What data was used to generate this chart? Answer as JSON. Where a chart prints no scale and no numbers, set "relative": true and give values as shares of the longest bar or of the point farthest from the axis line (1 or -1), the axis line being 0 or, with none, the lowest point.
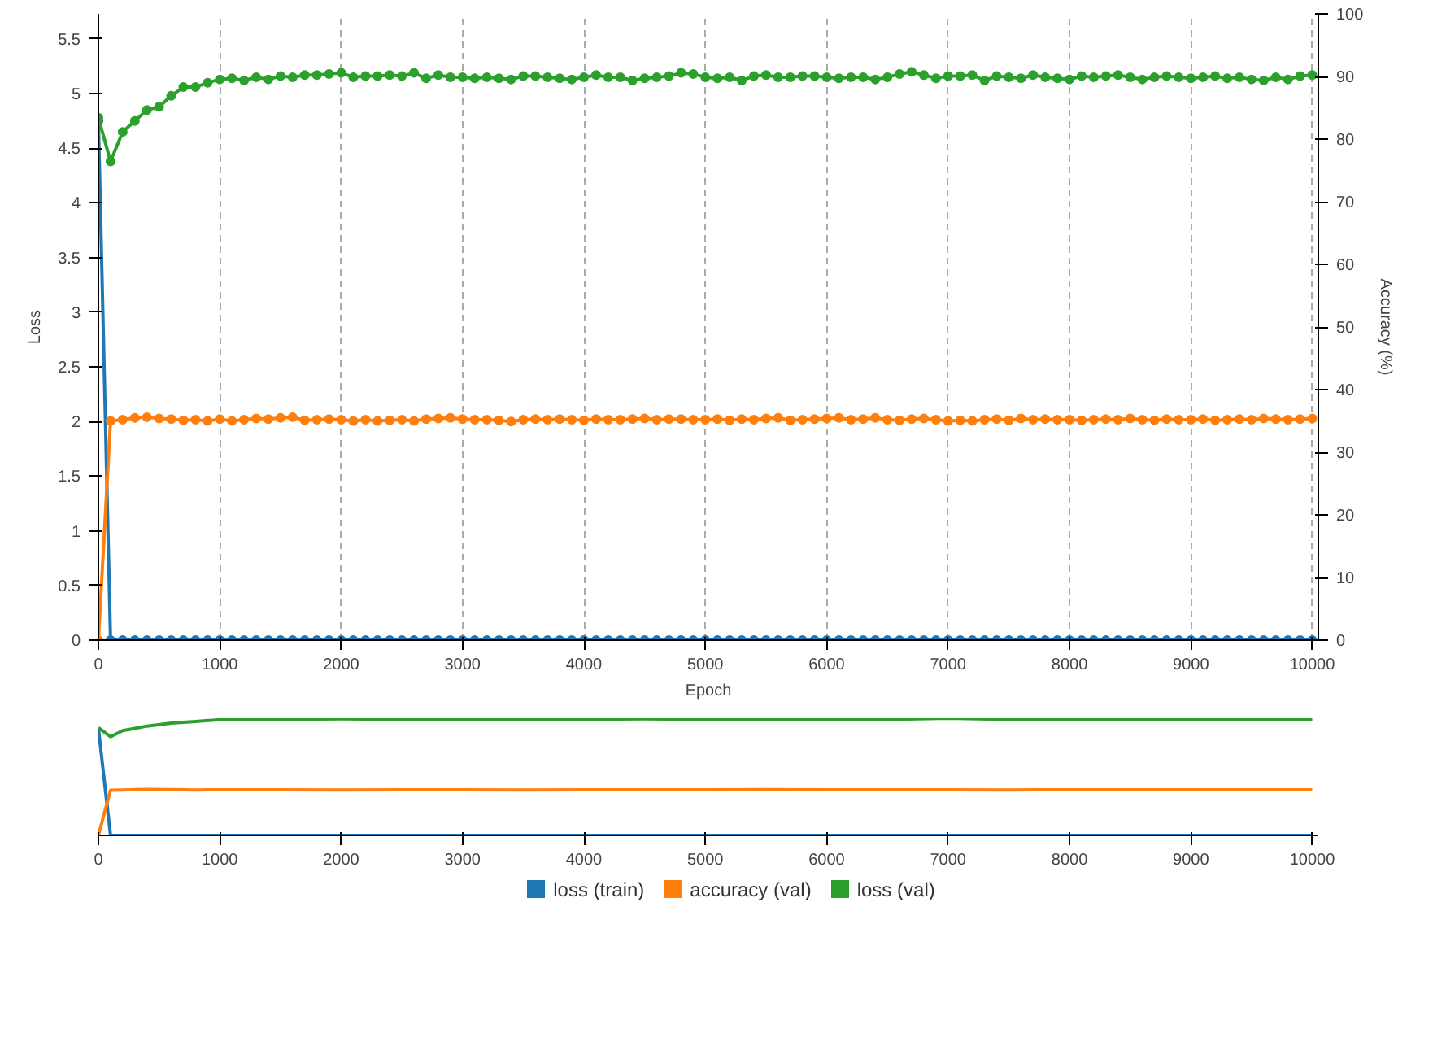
{
  "chart_data": [
    {
      "type": "line",
      "xlabel": "Epoch",
      "ylabel": "Loss",
      "y2label": "Accuracy (%)",
      "x": [
        0,
        100,
        200,
        300,
        400,
        500,
        600,
        700,
        800,
        900,
        1000,
        1100,
        1200,
        1300,
        1400,
        1500,
        1600,
        1700,
        1800,
        1900,
        2000,
        2100,
        2200,
        2300,
        2400,
        2500,
        2600,
        2700,
        2800,
        2900,
        3000,
        3100,
        3200,
        3300,
        3400,
        3500,
        3600,
        3700,
        3800,
        3900,
        4000,
        4100,
        4200,
        4300,
        4400,
        4500,
        4600,
        4700,
        4800,
        4900,
        5000,
        5100,
        5200,
        5300,
        5400,
        5500,
        5600,
        5700,
        5800,
        5900,
        6000,
        6100,
        6200,
        6300,
        6400,
        6500,
        6600,
        6700,
        6800,
        6900,
        7000,
        7100,
        7200,
        7300,
        7400,
        7500,
        7600,
        7700,
        7800,
        7900,
        8000,
        8100,
        8200,
        8300,
        8400,
        8500,
        8600,
        8700,
        8800,
        8900,
        9000,
        9100,
        9200,
        9300,
        9400,
        9500,
        9600,
        9700,
        9800,
        9900,
        10000
      ],
      "series": [
        {
          "color": "#1f77b4",
          "values": [
            4.75,
            0,
            0,
            0,
            0,
            0,
            0,
            0,
            0,
            0,
            0,
            0,
            0,
            0,
            0,
            0,
            0,
            0,
            0,
            0,
            0,
            0,
            0,
            0,
            0,
            0,
            0,
            0,
            0,
            0,
            0,
            0,
            0,
            0,
            0,
            0,
            0,
            0,
            0,
            0,
            0,
            0,
            0,
            0,
            0,
            0,
            0,
            0,
            0,
            0,
            0,
            0,
            0,
            0,
            0,
            0,
            0,
            0,
            0,
            0,
            0,
            0,
            0,
            0,
            0,
            0,
            0,
            0,
            0,
            0,
            0,
            0,
            0,
            0,
            0,
            0,
            0,
            0,
            0,
            0,
            0,
            0,
            0,
            0,
            0,
            0,
            0,
            0,
            0,
            0,
            0,
            0,
            0,
            0,
            0,
            0,
            0,
            0,
            0,
            0,
            0
          ]
        },
        {
          "color": "#ff7f0e",
          "axis": "y2",
          "values": [
            0,
            35.0,
            35.2,
            35.5,
            35.6,
            35.4,
            35.3,
            35.1,
            35.2,
            35.0,
            35.3,
            35.0,
            35.2,
            35.4,
            35.3,
            35.5,
            35.6,
            35.1,
            35.2,
            35.3,
            35.2,
            35.0,
            35.2,
            35.0,
            35.1,
            35.2,
            35.0,
            35.3,
            35.4,
            35.5,
            35.3,
            35.2,
            35.2,
            35.1,
            34.9,
            35.2,
            35.3,
            35.2,
            35.3,
            35.2,
            35.1,
            35.3,
            35.2,
            35.2,
            35.3,
            35.4,
            35.2,
            35.3,
            35.3,
            35.2,
            35.2,
            35.3,
            35.1,
            35.3,
            35.2,
            35.4,
            35.5,
            35.1,
            35.2,
            35.3,
            35.4,
            35.5,
            35.2,
            35.3,
            35.5,
            35.2,
            35.1,
            35.3,
            35.4,
            35.2,
            35.0,
            35.1,
            35.0,
            35.2,
            35.3,
            35.1,
            35.4,
            35.2,
            35.3,
            35.2,
            35.2,
            35.1,
            35.2,
            35.3,
            35.2,
            35.4,
            35.2,
            35.1,
            35.3,
            35.2,
            35.2,
            35.3,
            35.1,
            35.2,
            35.3,
            35.2,
            35.4,
            35.3,
            35.2,
            35.3,
            35.4
          ]
        },
        {
          "color": "#2ca02c",
          "values": [
            4.78,
            4.38,
            4.65,
            4.75,
            4.85,
            4.88,
            4.98,
            5.06,
            5.06,
            5.1,
            5.13,
            5.14,
            5.12,
            5.15,
            5.13,
            5.16,
            5.15,
            5.17,
            5.17,
            5.18,
            5.19,
            5.15,
            5.16,
            5.16,
            5.17,
            5.16,
            5.19,
            5.14,
            5.17,
            5.15,
            5.15,
            5.14,
            5.15,
            5.14,
            5.13,
            5.16,
            5.16,
            5.15,
            5.14,
            5.13,
            5.15,
            5.17,
            5.15,
            5.15,
            5.12,
            5.14,
            5.15,
            5.16,
            5.19,
            5.18,
            5.15,
            5.14,
            5.15,
            5.12,
            5.16,
            5.17,
            5.15,
            5.15,
            5.16,
            5.16,
            5.15,
            5.14,
            5.15,
            5.15,
            5.13,
            5.15,
            5.18,
            5.2,
            5.17,
            5.14,
            5.16,
            5.16,
            5.17,
            5.12,
            5.16,
            5.15,
            5.14,
            5.17,
            5.15,
            5.14,
            5.13,
            5.16,
            5.15,
            5.16,
            5.17,
            5.15,
            5.13,
            5.15,
            5.16,
            5.15,
            5.14,
            5.15,
            5.16,
            5.14,
            5.15,
            5.13,
            5.12,
            5.15,
            5.13,
            5.16,
            5.17
          ]
        }
      ],
      "xlim": [
        0,
        10050
      ],
      "xticks": [
        0,
        1000,
        2000,
        3000,
        4000,
        5000,
        6000,
        7000,
        8000,
        9000,
        10000
      ],
      "ylim": [
        0,
        5.73
      ],
      "yticks": [
        0,
        0.5,
        1,
        1.5,
        2,
        2.5,
        3,
        3.5,
        4,
        4.5,
        5,
        5.5
      ],
      "y2lim": [
        0,
        100
      ],
      "y2ticks": [
        0,
        10,
        20,
        30,
        40,
        50,
        60,
        70,
        80,
        90,
        100
      ],
      "grid": "x",
      "marker": "circle",
      "line_style": "solid"
    },
    {
      "type": "line",
      "relative": true,
      "x": [
        0,
        100,
        200,
        300,
        400,
        600,
        800,
        1000,
        1500,
        2000,
        2500,
        3000,
        3500,
        4000,
        4500,
        5000,
        5500,
        6000,
        6500,
        7000,
        7500,
        8000,
        8500,
        9000,
        9500,
        10000
      ],
      "series": [
        {
          "name": "loss (train)",
          "color": "#1f77b4",
          "values": [
            0.913,
            0,
            0,
            0,
            0,
            0,
            0,
            0,
            0,
            0,
            0,
            0,
            0,
            0,
            0,
            0,
            0,
            0,
            0,
            0,
            0,
            0,
            0,
            0,
            0,
            0
          ]
        },
        {
          "name": "accuracy (val)",
          "color": "#ff7f0e",
          "values": [
            0,
            0.386,
            0.388,
            0.391,
            0.392,
            0.39,
            0.388,
            0.389,
            0.389,
            0.388,
            0.389,
            0.389,
            0.388,
            0.389,
            0.389,
            0.389,
            0.39,
            0.389,
            0.389,
            0.389,
            0.388,
            0.389,
            0.389,
            0.389,
            0.389,
            0.389
          ]
        },
        {
          "name": "loss (val)",
          "color": "#2ca02c",
          "values": [
            0.919,
            0.842,
            0.894,
            0.913,
            0.933,
            0.958,
            0.973,
            0.987,
            0.99,
            0.995,
            0.99,
            0.99,
            0.99,
            0.99,
            0.995,
            0.99,
            0.99,
            0.99,
            0.99,
            1.0,
            0.99,
            0.99,
            0.99,
            0.99,
            0.99,
            0.99
          ]
        }
      ],
      "xlim": [
        0,
        10050
      ],
      "xticks": [
        0,
        1000,
        2000,
        3000,
        4000,
        5000,
        6000,
        7000,
        8000,
        9000,
        10000
      ],
      "tick_labels": "x",
      "legend": "bottom",
      "line_style": "solid"
    }
  ]
}
